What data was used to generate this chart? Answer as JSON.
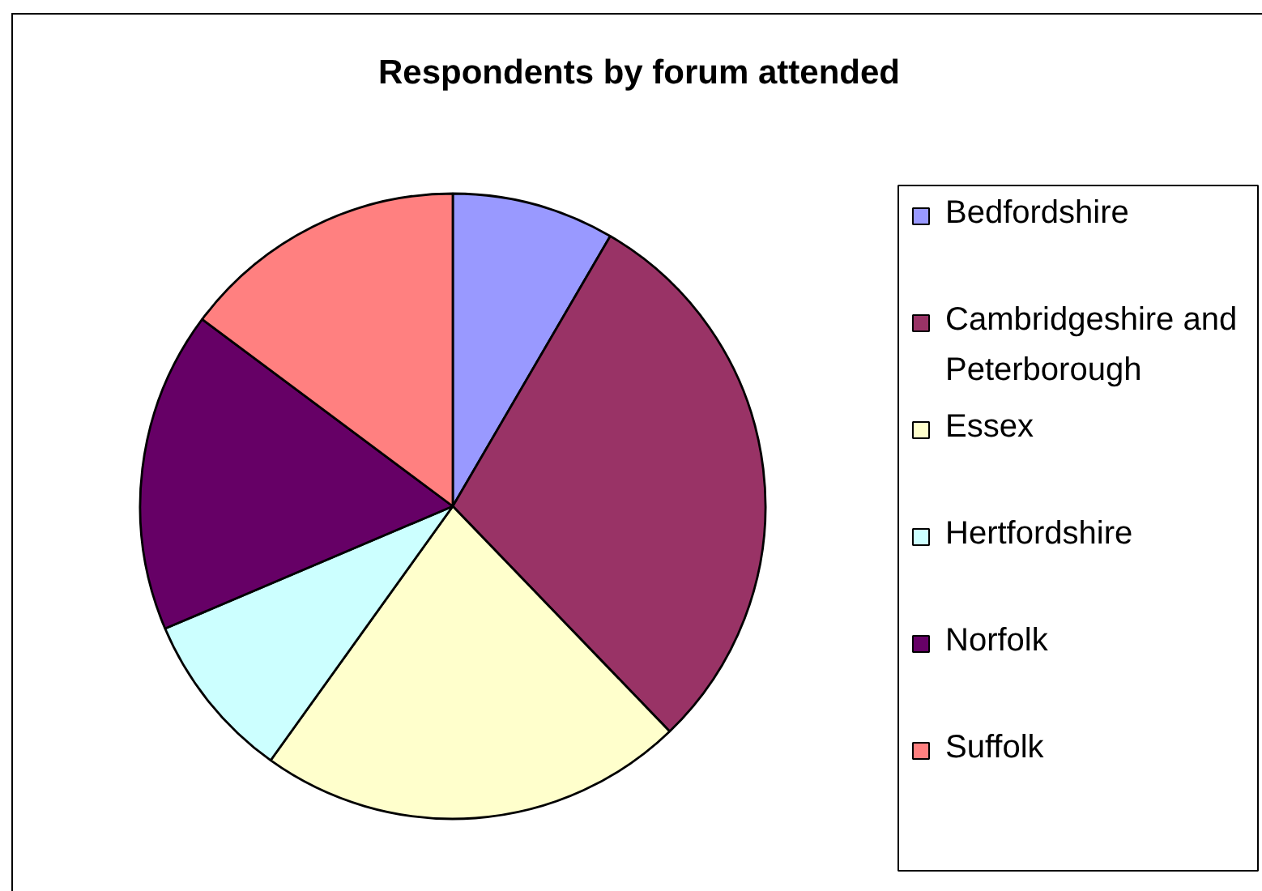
{
  "chart_data": {
    "type": "pie",
    "title": "Respondents by forum attended",
    "categories": [
      "Bedfordshire",
      "Cambridgeshire and Peterborough",
      "Essex",
      "Hertfordshire",
      "Norfolk",
      "Suffolk"
    ],
    "values": [
      8.4,
      29.4,
      22.1,
      8.7,
      16.6,
      14.8
    ],
    "colors": [
      "#9999ff",
      "#993366",
      "#ffffcc",
      "#ccffff",
      "#660066",
      "#ff8080"
    ],
    "legend": "right"
  }
}
